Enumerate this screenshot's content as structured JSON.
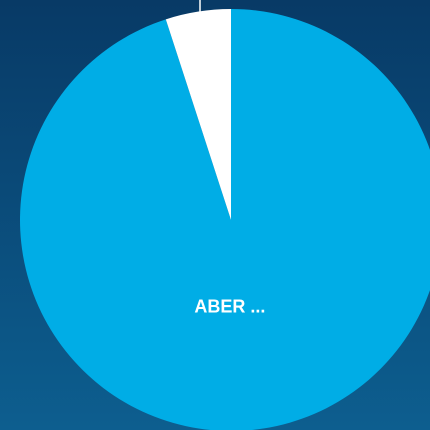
{
  "chart_data": {
    "type": "pie",
    "categories": [
      "ABER ...",
      null
    ],
    "values": [
      95,
      5
    ],
    "colors": [
      "#00ade6",
      "#ffffff"
    ]
  }
}
